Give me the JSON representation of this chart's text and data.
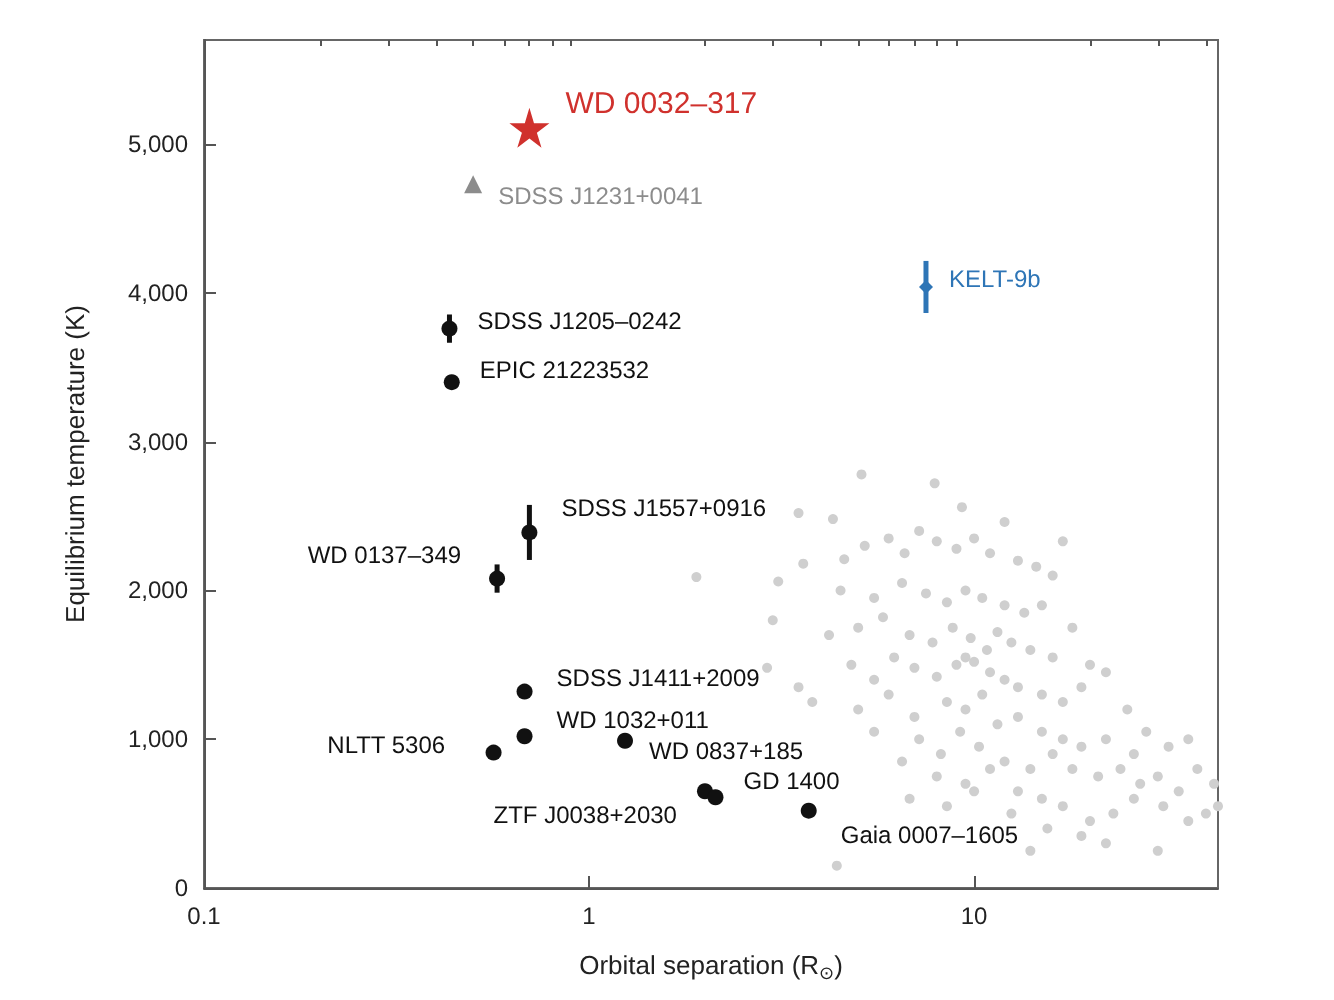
{
  "chart_data": {
    "type": "scatter",
    "xlabel": "Orbital separation (R$_{⊙}$)",
    "ylabel": "Equilibrium temperature (K)",
    "log": "x",
    "grid": false,
    "xlim": [
      0.1,
      43
    ],
    "xticks": [
      0.1,
      {
        "value": 0.2,
        "label": null
      },
      {
        "value": 0.3,
        "label": null
      },
      {
        "value": 0.4,
        "label": null
      },
      {
        "value": 0.5,
        "label": null
      },
      {
        "value": 0.6,
        "label": null
      },
      {
        "value": 0.7,
        "label": null
      },
      {
        "value": 0.8,
        "label": null
      },
      {
        "value": 0.9,
        "label": null
      },
      1,
      {
        "value": 2,
        "label": null
      },
      {
        "value": 3,
        "label": null
      },
      {
        "value": 4,
        "label": null
      },
      {
        "value": 5,
        "label": null
      },
      {
        "value": 6,
        "label": null
      },
      {
        "value": 7,
        "label": null
      },
      {
        "value": 8,
        "label": null
      },
      {
        "value": 9,
        "label": null
      },
      10,
      {
        "value": 20,
        "label": null
      },
      {
        "value": 30,
        "label": null
      },
      {
        "value": 40,
        "label": null
      }
    ],
    "ylim": [
      0,
      5700
    ],
    "yticks": [
      {
        "value": 0,
        "label": "0"
      },
      {
        "value": 1000,
        "label": "1,000"
      },
      {
        "value": 2000,
        "label": "2,000"
      },
      {
        "value": 3000,
        "label": "3,000"
      },
      {
        "value": 4000,
        "label": "4,000"
      },
      {
        "value": 5000,
        "label": "5,000"
      }
    ],
    "series": [
      {
        "color": "#cfcfcf",
        "marker": "circle",
        "x": [
          5.1,
          7.9,
          3.5,
          4.3,
          9.3,
          12,
          17,
          1.9,
          3.1,
          3.6,
          4.6,
          5.2,
          6.0,
          6.6,
          7.2,
          8.0,
          9.0,
          10,
          11,
          13,
          14.5,
          16,
          4.5,
          5.5,
          6.5,
          7.5,
          8.5,
          9.5,
          10.5,
          12,
          13.5,
          15,
          18,
          3.0,
          4.2,
          5.0,
          5.8,
          6.8,
          7.8,
          8.8,
          9.8,
          10.8,
          11.5,
          12.5,
          14,
          16,
          20,
          22,
          2.9,
          3.5,
          4.8,
          5.5,
          6.2,
          7.0,
          8.0,
          9.0,
          9.5,
          10,
          11,
          12,
          13,
          15,
          17,
          19,
          25,
          3.8,
          5.0,
          6.0,
          7.0,
          8.5,
          9.5,
          10.5,
          11.5,
          13,
          15,
          17,
          19,
          22,
          26,
          28,
          32,
          36,
          5.5,
          7.2,
          8.2,
          9.2,
          10.3,
          12,
          14,
          16,
          18,
          21,
          24,
          27,
          30,
          34,
          38,
          42,
          6.5,
          8.0,
          9.5,
          11,
          13,
          15,
          17,
          20,
          23,
          26,
          31,
          36,
          40,
          43,
          6.8,
          8.5,
          10,
          12.5,
          15.5,
          19,
          22,
          30,
          4.4,
          14
        ],
        "values": [
          2780,
          2720,
          2520,
          2480,
          2560,
          2460,
          2330,
          2090,
          2060,
          2180,
          2210,
          2300,
          2350,
          2250,
          2400,
          2330,
          2280,
          2350,
          2250,
          2200,
          2160,
          2100,
          2000,
          1950,
          2050,
          1980,
          1920,
          2000,
          1950,
          1900,
          1850,
          1900,
          1750,
          1800,
          1700,
          1750,
          1820,
          1700,
          1650,
          1750,
          1680,
          1600,
          1720,
          1650,
          1600,
          1550,
          1500,
          1450,
          1480,
          1350,
          1500,
          1400,
          1550,
          1480,
          1420,
          1500,
          1550,
          1520,
          1450,
          1400,
          1350,
          1300,
          1250,
          1350,
          1200,
          1250,
          1200,
          1300,
          1150,
          1250,
          1200,
          1300,
          1100,
          1150,
          1050,
          1000,
          950,
          1000,
          900,
          1050,
          950,
          1000,
          1050,
          1000,
          900,
          1050,
          950,
          850,
          800,
          900,
          800,
          750,
          800,
          700,
          750,
          650,
          800,
          700,
          850,
          750,
          700,
          800,
          650,
          600,
          550,
          450,
          500,
          600,
          550,
          450,
          500,
          550,
          600,
          550,
          650,
          500,
          400,
          350,
          300,
          250,
          150,
          250
        ]
      },
      {
        "name": "WD 0032–317",
        "color": "#d0312d",
        "marker": "star",
        "x": [
          0.7
        ],
        "values": [
          5110
        ]
      },
      {
        "name": "SDSS J1231+0041",
        "color": "#8c8c8c",
        "marker": "triangle",
        "x": [
          0.5
        ],
        "values": [
          4730
        ]
      },
      {
        "name": "KELT-9b",
        "color": "#2e75b6",
        "marker": "diamond",
        "x": [
          7.5
        ],
        "values": [
          4040
        ],
        "errors": [
          175
        ]
      },
      {
        "color": "#111111",
        "marker": "circle",
        "x": [
          0.434,
          0.44,
          0.7,
          0.577,
          0.68,
          0.68,
          0.565,
          1.24,
          2.0,
          2.13,
          3.72
        ],
        "values": [
          3760,
          3400,
          2390,
          2080,
          1320,
          1020,
          910,
          990,
          650,
          610,
          520
        ],
        "errors": [
          95,
          null,
          185,
          95,
          null,
          null,
          null,
          null,
          null,
          null,
          null
        ],
        "value_labels": [
          "SDSS J1205–0242",
          "EPIC 21223532",
          "SDSS J1557+0916",
          "WD 0137–349",
          "SDSS J1411+2009",
          "WD 1032+011",
          "NLTT 5306",
          "WD 0837+185",
          "ZTF J0038+2030",
          "GD 1400",
          "Gaia 0007–1605"
        ]
      }
    ]
  }
}
